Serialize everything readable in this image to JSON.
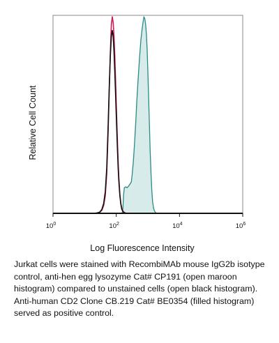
{
  "chart_data": {
    "type": "area",
    "xlabel": "Log Fluorescence Intensity",
    "ylabel": "Relative Cell Count",
    "x_scale": "log",
    "xlim": [
      1,
      1000000
    ],
    "ylim": [
      0,
      1
    ],
    "xtick_exponents": [
      "0",
      "2",
      "4",
      "6"
    ],
    "xtick_values": [
      1,
      100,
      10000,
      1000000
    ],
    "grid": false,
    "series": [
      {
        "style": "filled",
        "color": "#2a8a86",
        "fill": "#d7ecea",
        "x": [
          150,
          158,
          163,
          170,
          180,
          200,
          220,
          250,
          300,
          320,
          350,
          380,
          410,
          450,
          500,
          550,
          600,
          650,
          700,
          750,
          800,
          850,
          900,
          950,
          1000,
          1060,
          1120,
          1180,
          1260,
          1330,
          1410,
          1500,
          1590,
          1700,
          1780,
          1880,
          2000,
          2240,
          2510,
          2820,
          3160,
          3550,
          3980
        ],
        "y": [
          0.0,
          0.01,
          0.03,
          0.09,
          0.13,
          0.135,
          0.13,
          0.14,
          0.16,
          0.2,
          0.27,
          0.36,
          0.45,
          0.58,
          0.7,
          0.8,
          0.88,
          0.93,
          0.97,
          1.0,
          0.99,
          0.96,
          0.91,
          0.83,
          0.72,
          0.58,
          0.45,
          0.32,
          0.2,
          0.12,
          0.06,
          0.03,
          0.015,
          0.007,
          0.003,
          0.001,
          0.0,
          0.0,
          0.0,
          0.0,
          0.0,
          0.0,
          0.0
        ]
      },
      {
        "style": "open",
        "color": "#cc1a55",
        "x": [
          20,
          25,
          30,
          35,
          40,
          45,
          50,
          55,
          60,
          65,
          70,
          75,
          80,
          85,
          90,
          95,
          100,
          105,
          110,
          115,
          120,
          130,
          140,
          150,
          165,
          180,
          200,
          220,
          250
        ],
        "y": [
          0.0,
          0.002,
          0.005,
          0.015,
          0.04,
          0.09,
          0.2,
          0.4,
          0.62,
          0.82,
          0.96,
          1.0,
          0.97,
          0.9,
          0.8,
          0.68,
          0.56,
          0.45,
          0.35,
          0.26,
          0.19,
          0.1,
          0.05,
          0.025,
          0.01,
          0.004,
          0.001,
          0.0,
          0.0
        ]
      },
      {
        "style": "open",
        "color": "#111111",
        "x": [
          20,
          25,
          30,
          35,
          40,
          45,
          50,
          55,
          60,
          65,
          70,
          75,
          80,
          85,
          90,
          95,
          100,
          105,
          110,
          115,
          120,
          130,
          140,
          150,
          165,
          180,
          200,
          220,
          250
        ],
        "y": [
          0.0,
          0.002,
          0.006,
          0.02,
          0.05,
          0.11,
          0.23,
          0.43,
          0.64,
          0.8,
          0.9,
          0.93,
          0.9,
          0.82,
          0.72,
          0.61,
          0.5,
          0.4,
          0.31,
          0.23,
          0.17,
          0.09,
          0.045,
          0.02,
          0.008,
          0.003,
          0.001,
          0.0,
          0.0
        ]
      }
    ]
  },
  "caption": "Jurkat cells were stained with RecombiMAb mouse IgG2b isotype control, anti-hen egg lysozyme Cat# CP191 (open maroon histogram) compared to unstained cells (open black histogram). Anti-human CD2 Clone CB.219 Cat# BE0354 (filled histogram) served as positive control."
}
